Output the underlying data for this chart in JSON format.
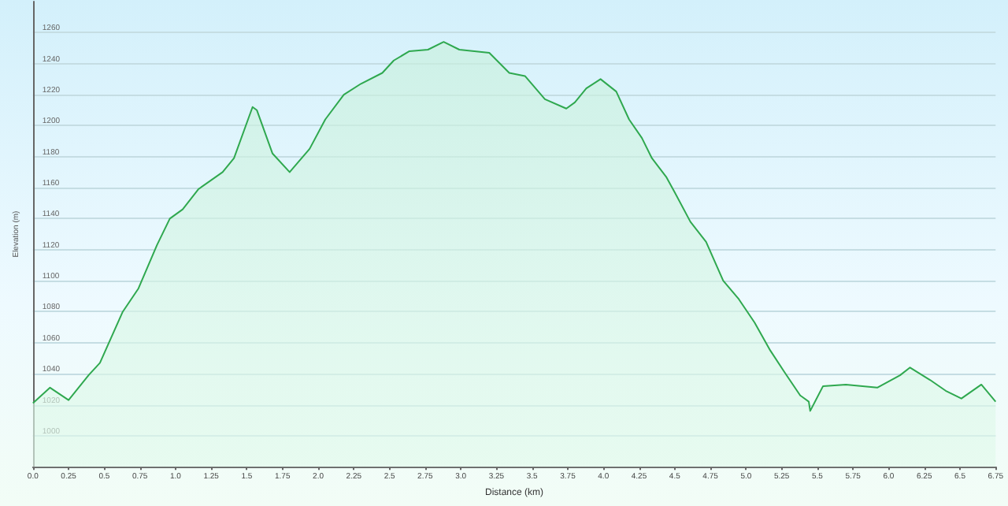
{
  "chart_data": {
    "type": "area",
    "xlabel": "Distance (km)",
    "ylabel": "Elevation (m)",
    "x": [
      0.0,
      0.12,
      0.25,
      0.39,
      0.47,
      0.63,
      0.74,
      0.87,
      0.96,
      1.05,
      1.16,
      1.33,
      1.41,
      1.54,
      1.57,
      1.68,
      1.8,
      1.94,
      2.05,
      2.18,
      2.3,
      2.45,
      2.53,
      2.64,
      2.77,
      2.88,
      2.99,
      3.2,
      3.34,
      3.45,
      3.59,
      3.74,
      3.8,
      3.88,
      3.98,
      4.09,
      4.18,
      4.27,
      4.34,
      4.44,
      4.5,
      4.61,
      4.72,
      4.84,
      4.95,
      5.06,
      5.17,
      5.27,
      5.38,
      5.44,
      5.45,
      5.54,
      5.7,
      5.92,
      6.08,
      6.15,
      6.29,
      6.4,
      6.51,
      6.65,
      6.75
    ],
    "series": [
      {
        "color": "#2fa84f",
        "values": [
          1021,
          1031,
          1023,
          1039,
          1047,
          1080,
          1095,
          1123,
          1140,
          1146,
          1159,
          1170,
          1179,
          1212,
          1210,
          1182,
          1170,
          1185,
          1204,
          1220,
          1227,
          1234,
          1242,
          1248,
          1249,
          1254,
          1249,
          1247,
          1234,
          1232,
          1217,
          1211,
          1215,
          1224,
          1230,
          1222,
          1204,
          1192,
          1179,
          1167,
          1157,
          1138,
          1125,
          1100,
          1088,
          1073,
          1055,
          1041,
          1026,
          1022,
          1016,
          1032,
          1033,
          1031,
          1039,
          1044,
          1036,
          1029,
          1024,
          1033,
          1022
        ]
      }
    ],
    "xlim": [
      0,
      6.75
    ],
    "xticks": [
      {
        "value": 0,
        "label": "0.0"
      },
      0.25,
      0.5,
      0.75,
      {
        "value": 1,
        "label": "1.0"
      },
      1.25,
      1.5,
      1.75,
      {
        "value": 2,
        "label": "2.0"
      },
      2.25,
      2.5,
      2.75,
      {
        "value": 3,
        "label": "3.0"
      },
      3.25,
      3.5,
      3.75,
      {
        "value": 4,
        "label": "4.0"
      },
      4.25,
      4.5,
      4.75,
      {
        "value": 5,
        "label": "5.0"
      },
      5.25,
      5.5,
      5.75,
      {
        "value": 6,
        "label": "6.0"
      },
      6.25,
      6.5,
      6.75
    ],
    "ylim": [
      980,
      1280
    ],
    "yticks": [
      1000,
      1020,
      1040,
      1060,
      1080,
      1100,
      1120,
      1140,
      1160,
      1180,
      1200,
      1220,
      1240,
      1260
    ],
    "grid": "y",
    "marker": "none",
    "line_style": "solid"
  }
}
